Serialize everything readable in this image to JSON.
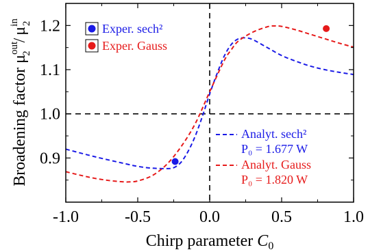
{
  "chart_data": {
    "type": "line",
    "xlabel": "Chirp parameter",
    "xlabel_symbol": "C",
    "xlabel_sub": "0",
    "ylabel": "Broadening factor",
    "ylabel_mu": "μ",
    "ylabel_sup_out": "out",
    "ylabel_sub": "2",
    "ylabel_sep": "/",
    "ylabel_sup_in": "in",
    "xlim": [
      -1.0,
      1.0
    ],
    "ylim": [
      0.8,
      1.25
    ],
    "x_ticks": [
      -1.0,
      -0.5,
      0.0,
      0.5,
      1.0
    ],
    "x_tick_labels": [
      "-1.0",
      "-0.5",
      "0.0",
      "0.5",
      "1.0"
    ],
    "y_ticks": [
      0.9,
      1.0,
      1.1,
      1.2
    ],
    "y_tick_labels": [
      "0.9",
      "1.0",
      "1.1",
      "1.2"
    ],
    "reference_lines": {
      "x": 0.0,
      "y": 1.0,
      "color": "#000000"
    },
    "series": [
      {
        "name": "Analyt. sech²",
        "note": "P₀ = 1.677 W",
        "style": "dashed",
        "color": "#1a1ae6",
        "x": [
          -1.0,
          -0.8,
          -0.6,
          -0.5,
          -0.4,
          -0.3,
          -0.25,
          -0.2,
          -0.15,
          -0.1,
          -0.05,
          0.0,
          0.05,
          0.1,
          0.15,
          0.2,
          0.25,
          0.3,
          0.4,
          0.5,
          0.6,
          0.7,
          0.8,
          0.9,
          1.0
        ],
        "y": [
          0.92,
          0.903,
          0.888,
          0.881,
          0.877,
          0.876,
          0.878,
          0.89,
          0.915,
          0.95,
          0.995,
          1.045,
          1.09,
          1.13,
          1.157,
          1.17,
          1.172,
          1.168,
          1.15,
          1.132,
          1.119,
          1.108,
          1.1,
          1.094,
          1.089
        ]
      },
      {
        "name": "Analyt. Gauss",
        "note": "P₀ = 1.820 W",
        "style": "dashed",
        "color": "#e61a1a",
        "x": [
          -1.0,
          -0.9,
          -0.8,
          -0.7,
          -0.6,
          -0.55,
          -0.5,
          -0.4,
          -0.3,
          -0.2,
          -0.1,
          0.0,
          0.1,
          0.15,
          0.2,
          0.3,
          0.4,
          0.45,
          0.5,
          0.6,
          0.7,
          0.8,
          0.9,
          1.0
        ],
        "y": [
          0.869,
          0.861,
          0.854,
          0.849,
          0.846,
          0.846,
          0.848,
          0.86,
          0.885,
          0.925,
          0.978,
          1.05,
          1.12,
          1.145,
          1.165,
          1.185,
          1.197,
          1.199,
          1.198,
          1.19,
          1.18,
          1.17,
          1.16,
          1.151
        ]
      }
    ],
    "experimental_points": [
      {
        "name": "Exper. sech²",
        "color": "#1a1ae6",
        "x": -0.24,
        "y": 0.892
      },
      {
        "name": "Exper. Gauss",
        "color": "#e61a1a",
        "x": 0.81,
        "y": 1.193
      }
    ],
    "legend": {
      "markers_placement": "top-left",
      "lines_placement": "bottom-right"
    }
  }
}
